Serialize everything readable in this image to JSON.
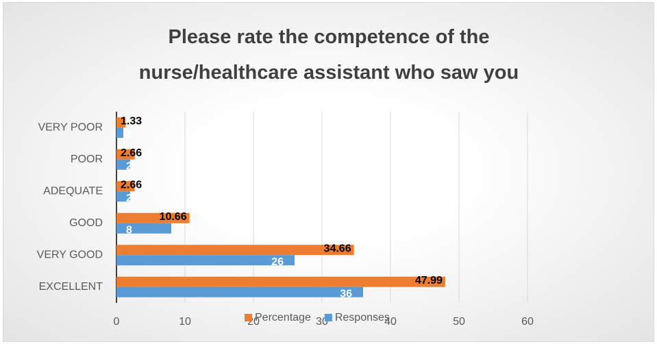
{
  "chart_data": {
    "type": "bar",
    "orientation": "horizontal",
    "title": "Please rate the competence of the nurse/healthcare assistant who saw you",
    "categories": [
      "VERY POOR",
      "POOR",
      "ADEQUATE",
      "GOOD",
      "VERY GOOD",
      "EXCELLENT"
    ],
    "series": [
      {
        "name": "Percentage",
        "color": "#ED7D31",
        "values": [
          1.33,
          2.66,
          2.66,
          10.66,
          34.66,
          47.99
        ]
      },
      {
        "name": "Responses",
        "color": "#5B9BD5",
        "values": [
          1,
          2,
          2,
          8,
          26,
          36
        ]
      }
    ],
    "xlim": [
      0,
      60
    ],
    "xticks": [
      0,
      10,
      20,
      30,
      40,
      50,
      60
    ],
    "grid": true,
    "legend": "bottom"
  }
}
